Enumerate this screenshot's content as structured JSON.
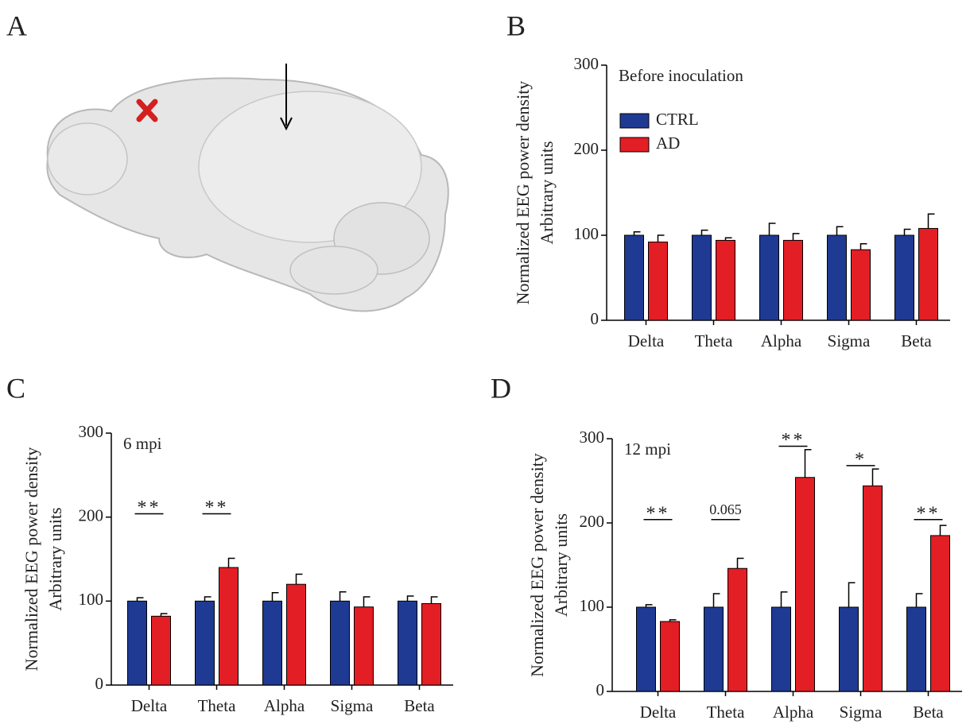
{
  "panel_a": {
    "label": "A"
  },
  "chart_data": [
    {
      "type": "bar",
      "panel_label": "B",
      "title": "Before inoculation",
      "y_label": [
        "Normalized EEG power density",
        "Arbitrary units"
      ],
      "categories": [
        "Delta",
        "Theta",
        "Alpha",
        "Sigma",
        "Beta"
      ],
      "series": [
        {
          "name": "CTRL",
          "color": "#1f3a93",
          "values": [
            100,
            100,
            100,
            100,
            100
          ],
          "errors": [
            4,
            6,
            14,
            10,
            7
          ]
        },
        {
          "name": "AD",
          "color": "#e31e24",
          "values": [
            92,
            94,
            94,
            83,
            108
          ],
          "errors": [
            8,
            3,
            8,
            7,
            17
          ]
        }
      ],
      "ylim": [
        0,
        300
      ],
      "yticks": [
        0,
        100,
        200,
        300
      ],
      "legend": true,
      "annotations": [
        null,
        null,
        null,
        null,
        null
      ]
    },
    {
      "type": "bar",
      "panel_label": "C",
      "title": "6 mpi",
      "y_label": [
        "Normalized EEG power density",
        "Arbitrary units"
      ],
      "categories": [
        "Delta",
        "Theta",
        "Alpha",
        "Sigma",
        "Beta"
      ],
      "series": [
        {
          "color": "#1f3a93",
          "values": [
            100,
            100,
            100,
            100,
            100
          ],
          "errors": [
            4,
            5,
            10,
            11,
            6
          ]
        },
        {
          "color": "#e31e24",
          "values": [
            82,
            140,
            120,
            93,
            97
          ],
          "errors": [
            3,
            11,
            12,
            12,
            8
          ]
        }
      ],
      "ylim": [
        0,
        300
      ],
      "yticks": [
        0,
        100,
        200,
        300
      ],
      "legend": false,
      "annotations": [
        "**",
        "**",
        null,
        null,
        null
      ]
    },
    {
      "type": "bar",
      "panel_label": "D",
      "title": "12 mpi",
      "y_label": [
        "Normalized EEG power density",
        "Arbitrary units"
      ],
      "categories": [
        "Delta",
        "Theta",
        "Alpha",
        "Sigma",
        "Beta"
      ],
      "series": [
        {
          "color": "#1f3a93",
          "values": [
            100,
            100,
            100,
            100,
            100
          ],
          "errors": [
            3,
            16,
            18,
            29,
            16
          ]
        },
        {
          "color": "#e31e24",
          "values": [
            83,
            146,
            254,
            244,
            185
          ],
          "errors": [
            2,
            12,
            33,
            20,
            12
          ]
        }
      ],
      "ylim": [
        0,
        300
      ],
      "yticks": [
        0,
        100,
        200,
        300
      ],
      "legend": false,
      "annotations": [
        "**",
        "0.065",
        "**",
        "*",
        "**"
      ]
    }
  ]
}
